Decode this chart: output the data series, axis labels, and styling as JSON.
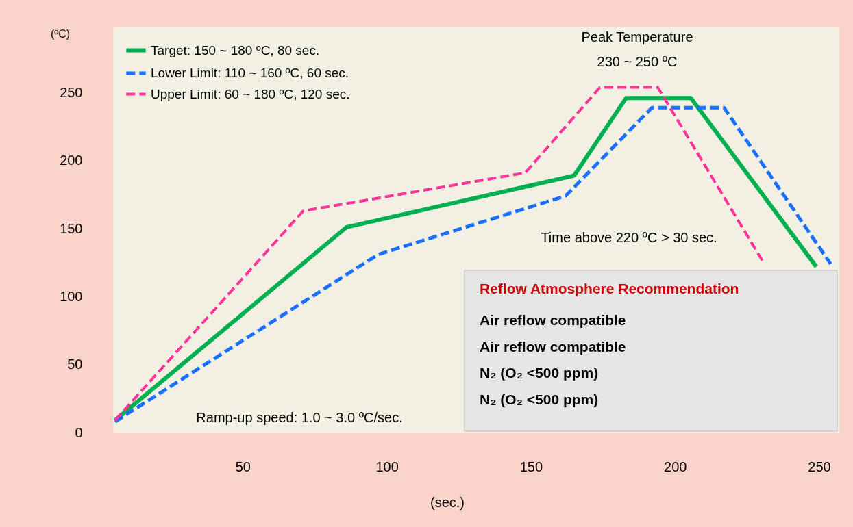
{
  "chart_data": {
    "type": "line",
    "xlabel": "(sec.)",
    "ylabel": "(ºC)",
    "xlim": [
      5,
      257
    ],
    "ylim": [
      0,
      298
    ],
    "xticks": [
      50,
      100,
      150,
      200,
      250
    ],
    "yticks": [
      0,
      50,
      100,
      150,
      200,
      250
    ],
    "grid": false,
    "legend": "top left",
    "marker": "none",
    "series": [
      {
        "name": "Target: 150 ~ 180 ºC, 80 sec.",
        "color": "#00b050",
        "line_style": "solid",
        "x": [
          5.7,
          86,
          165,
          183,
          205.5,
          249
        ],
        "values": [
          9,
          151,
          189,
          246,
          246,
          122
        ]
      },
      {
        "name": "Lower Limit: 110 ~ 160 ºC, 60 sec.",
        "color": "#1a6fff",
        "line_style": "dashed",
        "x": [
          5.7,
          97,
          162,
          192,
          217,
          254
        ],
        "values": [
          8,
          131,
          174,
          239,
          239,
          124
        ]
      },
      {
        "name": "Upper Limit: 60 ~ 180 ºC, 120 sec.",
        "color": "#ff3399",
        "line_style": "dashed",
        "x": [
          5.7,
          71,
          148,
          174,
          194,
          231
        ],
        "values": [
          9,
          163,
          191,
          254,
          254,
          124
        ]
      }
    ],
    "annotations": [
      "Peak Temperature\n230 ~ 250 ºC",
      "Time above 220 ºC > 30 sec.",
      "Ramp-up speed: 1.0 ~ 3.0 ºC/sec.",
      "Reflow Atmosphere Recommendation",
      "Air reflow compatible",
      "Air reflow compatible",
      "N₂ (O₂  <500 ppm)",
      "N₂ (O₂  <500 ppm)"
    ]
  }
}
